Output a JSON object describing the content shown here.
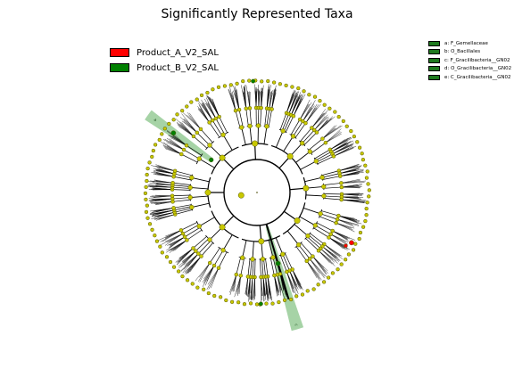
{
  "figure": {
    "title": "Significantly Represented Taxa"
  },
  "legend": {
    "groups": [
      {
        "label": "Product_A_V2_SAL",
        "color": "#ff0000"
      },
      {
        "label": "Product_B_V2_SAL",
        "color": "#008000"
      }
    ],
    "clades": [
      {
        "label": "a: F_Gemellaceae",
        "color": "#1f7a1f"
      },
      {
        "label": "b: O_Bacillales",
        "color": "#1f7a1f"
      },
      {
        "label": "c: F_Gracilibacteria__GN02",
        "color": "#1f7a1f"
      },
      {
        "label": "d: O_Gracilibacteria__GN02",
        "color": "#1f7a1f"
      },
      {
        "label": "e: C_Gracilibacteria__GN02",
        "color": "#1f7a1f"
      }
    ]
  },
  "cladogram": {
    "node_color": "#c8c800",
    "line_color": "#000000",
    "highlights": [
      {
        "label": "a",
        "group": "Product_B_V2_SAL",
        "color": "#008000"
      },
      {
        "label": "b",
        "group": "Product_B_V2_SAL",
        "color": "#008000"
      },
      {
        "label": "c",
        "group": "Product_B_V2_SAL",
        "color": "#008000"
      },
      {
        "label": "d",
        "group": "Product_B_V2_SAL",
        "color": "#008000"
      },
      {
        "label": "e",
        "group": "Product_B_V2_SAL",
        "color": "#008000"
      }
    ],
    "red_marker": {
      "group": "Product_A_V2_SAL",
      "color": "#ff0000"
    }
  }
}
